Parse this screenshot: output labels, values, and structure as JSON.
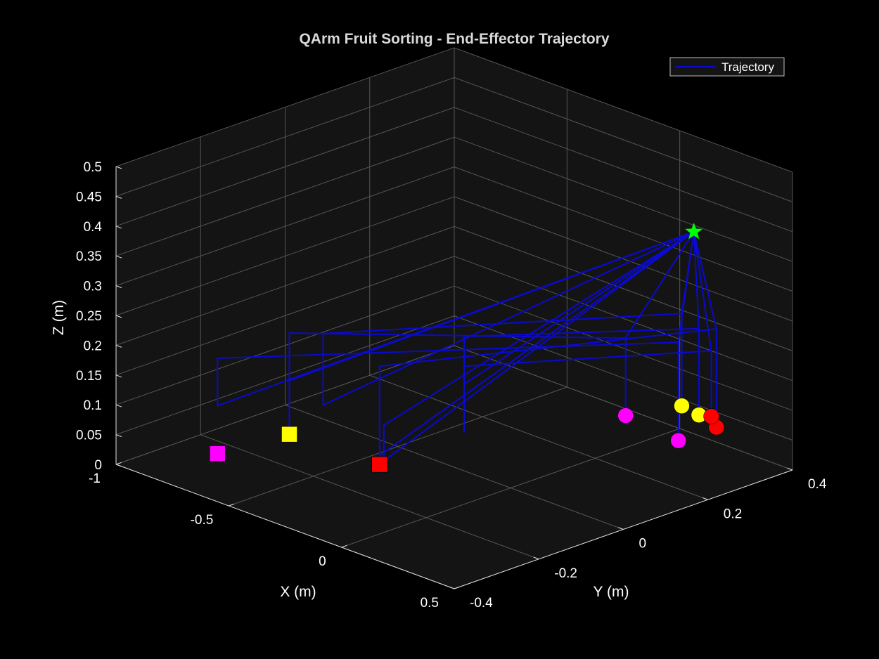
{
  "chart_data": {
    "type": "line",
    "projection": "3d",
    "title": "QArm Fruit Sorting - End-Effector Trajectory",
    "xlabel": "X (m)",
    "ylabel": "Y (m)",
    "zlabel": "Z (m)",
    "xlim": [
      -1,
      0.5
    ],
    "ylim": [
      -0.4,
      0.4
    ],
    "zlim": [
      0,
      0.5
    ],
    "x_ticks": [
      "-1",
      "-0.5",
      "0",
      "0.5"
    ],
    "y_ticks": [
      "-0.4",
      "-0.2",
      "0",
      "0.2",
      "0.4"
    ],
    "z_ticks": [
      "0",
      "0.05",
      "0.1",
      "0.15",
      "0.2",
      "0.25",
      "0.3",
      "0.35",
      "0.4",
      "0.45",
      "0.5"
    ],
    "grid": true,
    "legend": {
      "position": "top-right",
      "entries": [
        "Trajectory"
      ]
    },
    "colors": {
      "background": "#000000",
      "axes_face": "#141414",
      "grid": "#555555",
      "trajectory": "#0a0ad2",
      "home": "#00ff00",
      "red": "#ff0000",
      "yellow": "#ffff00",
      "magenta": "#ff00ff",
      "text": "#ffffff"
    },
    "series": [
      {
        "name": "Trajectory",
        "points": [
          [
            0.25,
            0.3,
            0.39
          ],
          [
            0.0,
            -0.3,
            0.12
          ],
          [
            0.0,
            -0.3,
            0.18
          ],
          [
            0.25,
            0.3,
            0.39
          ],
          [
            0.06,
            0.24,
            0.2
          ],
          [
            0.06,
            0.24,
            0.07
          ],
          [
            0.06,
            0.24,
            0.2
          ],
          [
            -0.7,
            -0.15,
            0.2
          ],
          [
            -0.7,
            -0.15,
            0.03
          ],
          [
            -0.7,
            -0.15,
            0.12
          ],
          [
            0.25,
            0.3,
            0.39
          ],
          [
            0.2,
            0.29,
            0.2
          ],
          [
            0.2,
            0.29,
            0.035
          ],
          [
            0.2,
            0.29,
            0.2
          ],
          [
            -0.7,
            -0.32,
            0.2
          ],
          [
            -0.7,
            -0.32,
            0.12
          ],
          [
            0.25,
            0.3,
            0.39
          ],
          [
            0.14,
            0.33,
            0.23
          ],
          [
            0.14,
            0.33,
            0.075
          ],
          [
            0.14,
            0.33,
            0.23
          ],
          [
            -0.55,
            -0.15,
            0.22
          ],
          [
            -0.55,
            -0.15,
            0.1
          ],
          [
            0.25,
            0.3,
            0.39
          ],
          [
            0.16,
            0.36,
            0.2
          ],
          [
            0.16,
            0.36,
            0.055
          ],
          [
            0.16,
            0.36,
            0.2
          ],
          [
            -0.3,
            0.05,
            0.2
          ],
          [
            -0.3,
            0.05,
            0.04
          ],
          [
            -0.3,
            0.05,
            0.12
          ],
          [
            0.25,
            0.3,
            0.39
          ],
          [
            0.2,
            0.38,
            0.2
          ],
          [
            0.2,
            0.38,
            0.035
          ],
          [
            0.2,
            0.38,
            0.2
          ],
          [
            -0.3,
            -0.15,
            0.2
          ],
          [
            -0.3,
            -0.15,
            0.05
          ],
          [
            0.25,
            0.3,
            0.39
          ],
          [
            0.14,
            0.4,
            0.15
          ],
          [
            0.14,
            0.4,
            0.04
          ],
          [
            0.14,
            0.4,
            0.15
          ],
          [
            -0.3,
            0.05,
            0.15
          ],
          [
            -0.3,
            0.05,
            0.04
          ]
        ]
      }
    ],
    "markers": [
      {
        "label": "home",
        "shape": "star",
        "color": "#00ff00",
        "x": 0.25,
        "y": 0.3,
        "z": 0.39
      },
      {
        "label": "fruit",
        "shape": "circle",
        "color": "#ff00ff",
        "x": 0.06,
        "y": 0.24,
        "z": 0.07
      },
      {
        "label": "fruit",
        "shape": "circle",
        "color": "#ffff00",
        "x": 0.14,
        "y": 0.33,
        "z": 0.075
      },
      {
        "label": "fruit",
        "shape": "circle",
        "color": "#ffff00",
        "x": 0.16,
        "y": 0.36,
        "z": 0.055
      },
      {
        "label": "fruit",
        "shape": "circle",
        "color": "#ff00ff",
        "x": 0.2,
        "y": 0.29,
        "z": 0.035
      },
      {
        "label": "fruit",
        "shape": "circle",
        "color": "#ff0000",
        "x": 0.2,
        "y": 0.38,
        "z": 0.035
      },
      {
        "label": "fruit",
        "shape": "circle",
        "color": "#ff0000",
        "x": 0.14,
        "y": 0.4,
        "z": 0.04
      },
      {
        "label": "bin",
        "shape": "square",
        "color": "#ffff00",
        "x": -0.7,
        "y": -0.15,
        "z": 0.03
      },
      {
        "label": "bin",
        "shape": "square",
        "color": "#ff00ff",
        "x": -0.7,
        "y": -0.32,
        "z": 0.04
      },
      {
        "label": "bin",
        "shape": "square",
        "color": "#ff0000",
        "x": -0.3,
        "y": -0.15,
        "z": 0.035
      }
    ]
  }
}
